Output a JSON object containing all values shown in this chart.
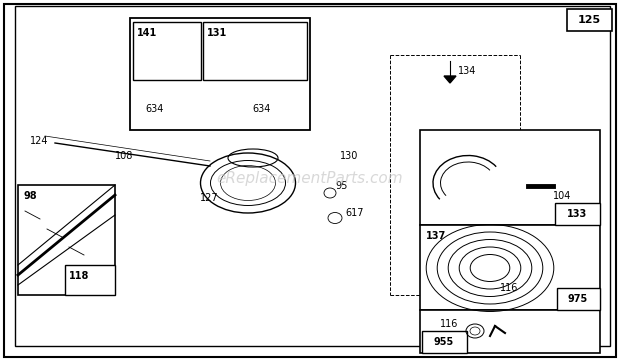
{
  "background_color": "#ffffff",
  "watermark": "eReplacementParts.com",
  "watermark_color": "#c8c8c8",
  "watermark_fontsize": 11,
  "fig_width": 6.2,
  "fig_height": 3.61,
  "dpi": 100
}
